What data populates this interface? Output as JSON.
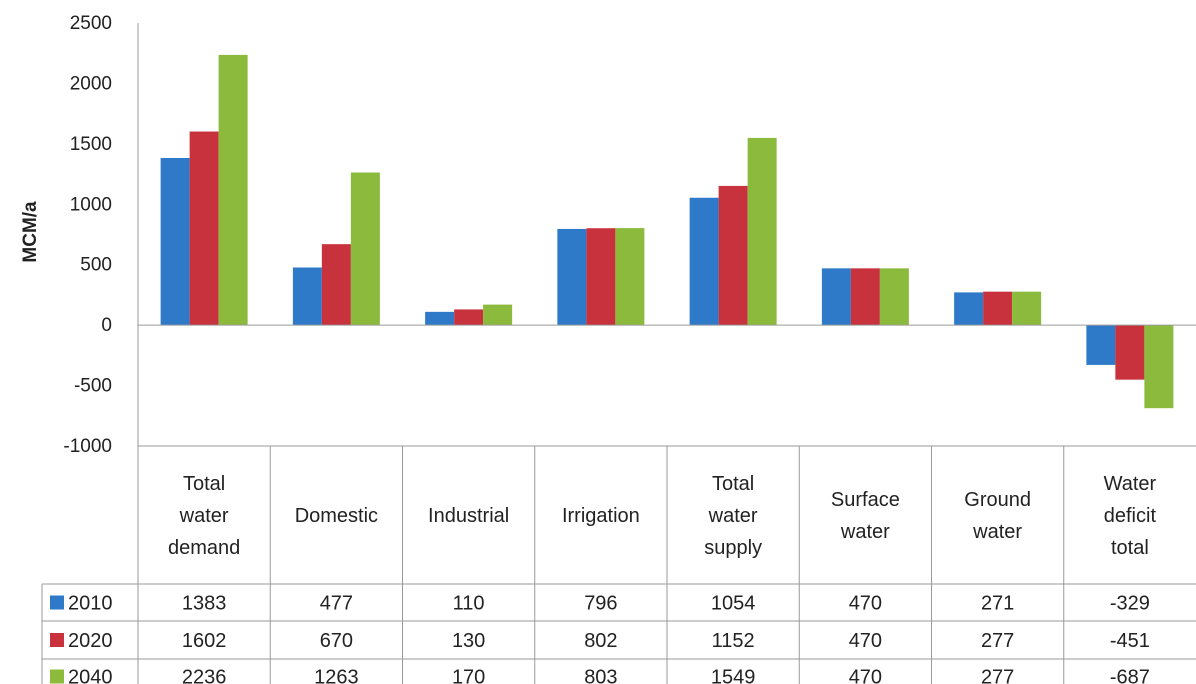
{
  "chart_data": {
    "type": "bar",
    "title": "",
    "xlabel": "",
    "ylabel": "MCM/a",
    "ylim": [
      -1000,
      2500
    ],
    "yticks": [
      "2500",
      "2000",
      "1500",
      "1000",
      "500",
      "0",
      "-500",
      "-1000"
    ],
    "grid": false,
    "legend": "in data table",
    "categories": [
      [
        "Total",
        "water",
        "demand"
      ],
      [
        "Domestic"
      ],
      [
        "Industrial"
      ],
      [
        "Irrigation"
      ],
      [
        "Total",
        "water",
        "supply"
      ],
      [
        "Surface",
        "water"
      ],
      [
        "Ground",
        "water"
      ],
      [
        "Water",
        "deficit",
        "total"
      ]
    ],
    "series": [
      {
        "name": "2010",
        "color": "#2f7ac8",
        "values": [
          1383,
          477,
          110,
          796,
          1054,
          470,
          271,
          -329
        ],
        "labels": [
          "1383",
          "477",
          "110",
          "796",
          "1054",
          "470",
          "271",
          "-329"
        ]
      },
      {
        "name": "2020",
        "color": "#c8323c",
        "values": [
          1602,
          670,
          130,
          802,
          1152,
          470,
          277,
          -451
        ],
        "labels": [
          "1602",
          "670",
          "130",
          "802",
          "1152",
          "470",
          "277",
          "-451"
        ]
      },
      {
        "name": "2040",
        "color": "#8cba3c",
        "values": [
          2236,
          1263,
          170,
          803,
          1549,
          470,
          277,
          -687
        ],
        "labels": [
          "2236",
          "1263",
          "170",
          "803",
          "1549",
          "470",
          "277",
          "-687"
        ]
      }
    ]
  }
}
